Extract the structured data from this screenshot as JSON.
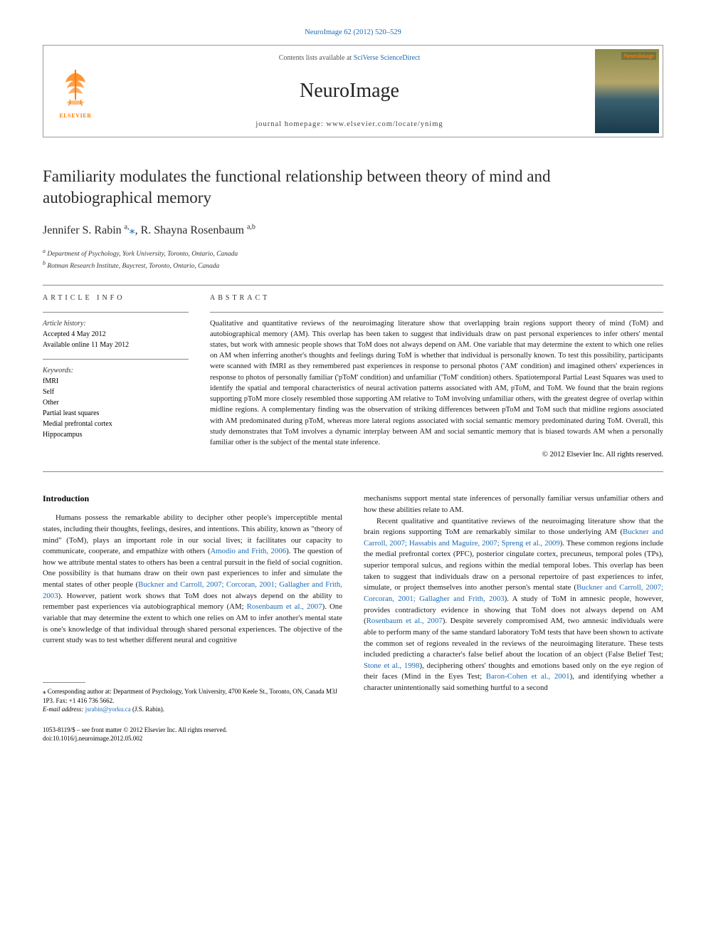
{
  "colors": {
    "link": "#1a6bb5",
    "text": "#1a1a1a",
    "orange": "#ff7a00",
    "border": "#888888",
    "background": "#ffffff"
  },
  "fonts": {
    "body_family": "Georgia, 'Times New Roman', serif",
    "title_size_pt": 23,
    "journal_size_pt": 28,
    "author_size_pt": 16,
    "abstract_size_pt": 10.5,
    "body_size_pt": 10.8,
    "footnote_size_pt": 9
  },
  "top_citation": "NeuroImage 62 (2012) 520–529",
  "header": {
    "contents_prefix": "Contents lists available at ",
    "contents_link": "SciVerse ScienceDirect",
    "journal": "NeuroImage",
    "homepage_prefix": "journal homepage: ",
    "homepage_url": "www.elsevier.com/locate/ynimg",
    "publisher": "ELSEVIER",
    "cover_label": "NeuroImage"
  },
  "title": "Familiarity modulates the functional relationship between theory of mind and autobiographical memory",
  "authors_html": "Jennifer S. Rabin <sup>a,</sup><span class=\"star\">⁎</span>, R. Shayna Rosenbaum <sup>a,b</sup>",
  "affiliations": [
    "Department of Psychology, York University, Toronto, Ontario, Canada",
    "Rotman Research Institute, Baycrest, Toronto, Ontario, Canada"
  ],
  "affiliation_sup": [
    "a",
    "b"
  ],
  "article_info": {
    "label": "ARTICLE INFO",
    "history_label": "Article history:",
    "accepted": "Accepted 4 May 2012",
    "online": "Available online 11 May 2012",
    "keywords_label": "Keywords:",
    "keywords": [
      "fMRI",
      "Self",
      "Other",
      "Partial least squares",
      "Medial prefrontal cortex",
      "Hippocampus"
    ]
  },
  "abstract": {
    "label": "ABSTRACT",
    "text": "Qualitative and quantitative reviews of the neuroimaging literature show that overlapping brain regions support theory of mind (ToM) and autobiographical memory (AM). This overlap has been taken to suggest that individuals draw on past personal experiences to infer others' mental states, but work with amnesic people shows that ToM does not always depend on AM. One variable that may determine the extent to which one relies on AM when inferring another's thoughts and feelings during ToM is whether that individual is personally known. To test this possibility, participants were scanned with fMRI as they remembered past experiences in response to personal photos ('AM' condition) and imagined others' experiences in response to photos of personally familiar ('pToM' condition) and unfamiliar ('ToM' condition) others. Spatiotemporal Partial Least Squares was used to identify the spatial and temporal characteristics of neural activation patterns associated with AM, pToM, and ToM. We found that the brain regions supporting pToM more closely resembled those supporting AM relative to ToM involving unfamiliar others, with the greatest degree of overlap within midline regions. A complementary finding was the observation of striking differences between pToM and ToM such that midline regions associated with AM predominated during pToM, whereas more lateral regions associated with social semantic memory predominated during ToM. Overall, this study demonstrates that ToM involves a dynamic interplay between AM and social semantic memory that is biased towards AM when a personally familiar other is the subject of the mental state inference.",
    "copyright": "© 2012 Elsevier Inc. All rights reserved."
  },
  "introduction": {
    "heading": "Introduction",
    "col1_p1": "Humans possess the remarkable ability to decipher other people's imperceptible mental states, including their thoughts, feelings, desires, and intentions. This ability, known as \"theory of mind\" (ToM), plays an important role in our social lives; it facilitates our capacity to communicate, cooperate, and empathize with others (<span class=\"cite\">Amodio and Frith, 2006</span>). The question of how we attribute mental states to others has been a central pursuit in the field of social cognition. One possibility is that humans draw on their own past experiences to infer and simulate the mental states of other people (<span class=\"cite\">Buckner and Carroll, 2007; Corcoran, 2001; Gallagher and Frith, 2003</span>). However, patient work shows that ToM does not always depend on the ability to remember past experiences via autobiographical memory (AM; <span class=\"cite\">Rosenbaum et al., 2007</span>). One variable that may determine the extent to which one relies on AM to infer another's mental state is one's knowledge of that individual through shared personal experiences. The objective of the current study was to test whether different neural and cognitive",
    "col2_p1": "mechanisms support mental state inferences of personally familiar versus unfamiliar others and how these abilities relate to AM.",
    "col2_p2": "Recent qualitative and quantitative reviews of the neuroimaging literature show that the brain regions supporting ToM are remarkably similar to those underlying AM (<span class=\"cite\">Buckner and Carroll, 2007; Hassabis and Maguire, 2007; Spreng et al., 2009</span>). These common regions include the medial prefrontal cortex (PFC), posterior cingulate cortex, precuneus, temporal poles (TPs), superior temporal sulcus, and regions within the medial temporal lobes. This overlap has been taken to suggest that individuals draw on a personal repertoire of past experiences to infer, simulate, or project themselves into another person's mental state (<span class=\"cite\">Buckner and Carroll, 2007; Corcoran, 2001; Gallagher and Frith, 2003</span>). A study of ToM in amnesic people, however, provides contradictory evidence in showing that ToM does not always depend on AM (<span class=\"cite\">Rosenbaum et al., 2007</span>). Despite severely compromised AM, two amnesic individuals were able to perform many of the same standard laboratory ToM tests that have been shown to activate the common set of regions revealed in the reviews of the neuroimaging literature. These tests included predicting a character's false belief about the location of an object (False Belief Test; <span class=\"cite\">Stone et al., 1998</span>), deciphering others' thoughts and emotions based only on the eye region of their faces (Mind in the Eyes Test; <span class=\"cite\">Baron-Cohen et al., 2001</span>), and identifying whether a character unintentionally said something hurtful to a second"
  },
  "footnote": {
    "corresponding": "⁎ Corresponding author at: Department of Psychology, York University, 4700 Keele St., Toronto, ON, Canada M3J 1P3. Fax: +1 416 736 5662.",
    "email_label": "E-mail address:",
    "email": "jsrabin@yorku.ca",
    "email_name": "(J.S. Rabin)."
  },
  "bottom": {
    "issn": "1053-8119/$ – see front matter © 2012 Elsevier Inc. All rights reserved.",
    "doi": "doi:10.1016/j.neuroimage.2012.05.002"
  }
}
